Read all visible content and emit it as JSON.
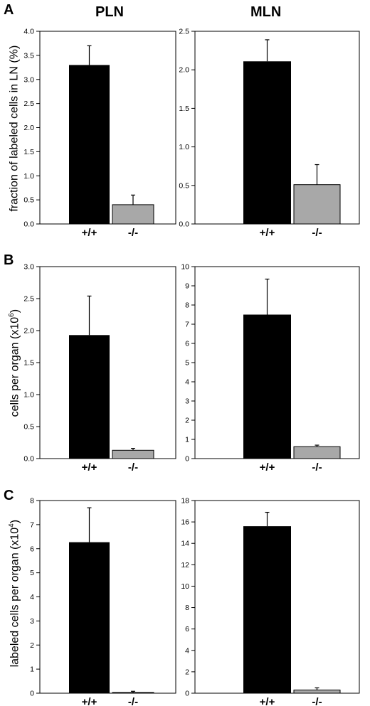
{
  "panels": [
    {
      "letter": "A",
      "ylabel": {
        "pre": "fraction of labeled cells in LN (%)",
        "sup": "",
        "post": ""
      }
    },
    {
      "letter": "B",
      "ylabel": {
        "pre": "cells per organ (x10",
        "sup": "6",
        "post": ")"
      }
    },
    {
      "letter": "C",
      "ylabel": {
        "pre": "labeled cells per organ (x10",
        "sup": "4",
        "post": ")"
      }
    }
  ],
  "columns": [
    "PLN",
    "MLN"
  ],
  "chart_data": [
    {
      "type": "bar",
      "title": "PLN",
      "categories": [
        "+/+",
        "-/-"
      ],
      "values": [
        3.3,
        0.4
      ],
      "errors": [
        0.4,
        0.2
      ],
      "ylim": [
        0,
        4.0
      ],
      "ticks": [
        "0.0",
        "0.5",
        "1.0",
        "1.5",
        "2.0",
        "2.5",
        "3.0",
        "3.5",
        "4.0"
      ],
      "colors": [
        "#000000",
        "#a8a8a8"
      ]
    },
    {
      "type": "bar",
      "title": "MLN",
      "categories": [
        "+/+",
        "-/-"
      ],
      "values": [
        2.11,
        0.51
      ],
      "errors": [
        0.28,
        0.26
      ],
      "ylim": [
        0,
        2.5
      ],
      "ticks": [
        "0.0",
        "0.5",
        "1.0",
        "1.5",
        "2.0",
        "2.5"
      ],
      "colors": [
        "#000000",
        "#a8a8a8"
      ]
    },
    {
      "type": "bar",
      "categories": [
        "+/+",
        "-/-"
      ],
      "values": [
        1.93,
        0.13
      ],
      "errors": [
        0.61,
        0.03
      ],
      "ylim": [
        0,
        3.0
      ],
      "ticks": [
        "0.0",
        "0.5",
        "1.0",
        "1.5",
        "2.0",
        "2.5",
        "3.0"
      ],
      "colors": [
        "#000000",
        "#a8a8a8"
      ]
    },
    {
      "type": "bar",
      "categories": [
        "+/+",
        "-/-"
      ],
      "values": [
        7.5,
        0.62
      ],
      "errors": [
        1.85,
        0.08
      ],
      "ylim": [
        0,
        10
      ],
      "ticks": [
        "0",
        "1",
        "2",
        "3",
        "4",
        "5",
        "6",
        "7",
        "8",
        "9",
        "10"
      ],
      "colors": [
        "#000000",
        "#a8a8a8"
      ]
    },
    {
      "type": "bar",
      "categories": [
        "+/+",
        "-/-"
      ],
      "values": [
        6.27,
        0.03
      ],
      "errors": [
        1.43,
        0.05
      ],
      "ylim": [
        0,
        8
      ],
      "ticks": [
        "0",
        "1",
        "2",
        "3",
        "4",
        "5",
        "6",
        "7",
        "8"
      ],
      "colors": [
        "#000000",
        "#a8a8a8"
      ]
    },
    {
      "type": "bar",
      "categories": [
        "+/+",
        "-/-"
      ],
      "values": [
        15.6,
        0.3
      ],
      "errors": [
        1.3,
        0.2
      ],
      "ylim": [
        0,
        18
      ],
      "ticks": [
        "0",
        "2",
        "4",
        "6",
        "8",
        "10",
        "12",
        "14",
        "16",
        "18"
      ],
      "colors": [
        "#000000",
        "#a8a8a8"
      ]
    }
  ]
}
